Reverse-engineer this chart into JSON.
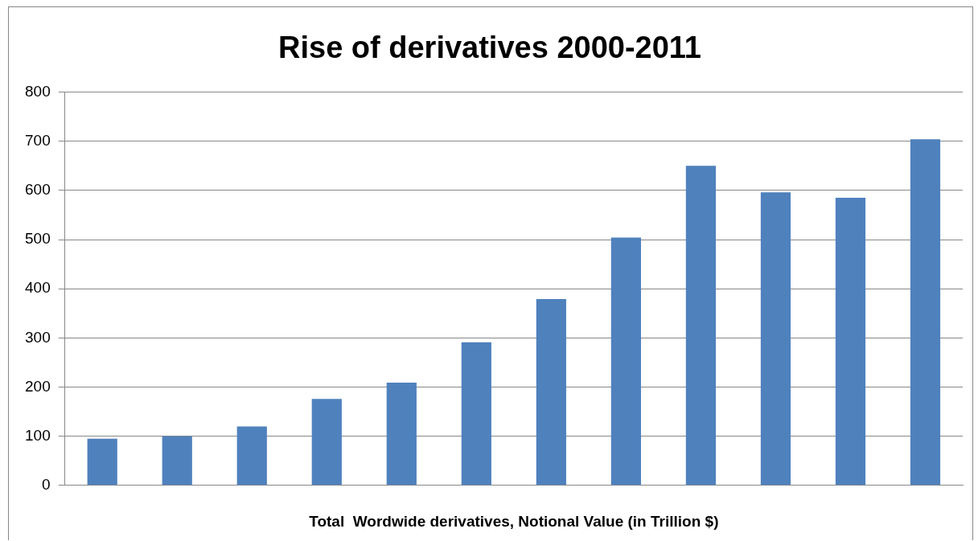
{
  "chart_data": {
    "type": "bar",
    "title": "Rise of derivatives 2000-2011",
    "xlabel": "Total  Wordwide derivatives, Notional Value (in Trillion $)",
    "categories": [
      null,
      null,
      null,
      null,
      null,
      null,
      null,
      null,
      null,
      null,
      null,
      null
    ],
    "values": [
      95,
      100,
      120,
      176,
      209,
      291,
      379,
      504,
      650,
      596,
      585,
      704
    ],
    "color": "#4f81bd",
    "ylim": [
      0,
      800
    ],
    "yticks": [
      0,
      100,
      200,
      300,
      400,
      500,
      600,
      700,
      800
    ],
    "grid": "y",
    "legend": false
  }
}
